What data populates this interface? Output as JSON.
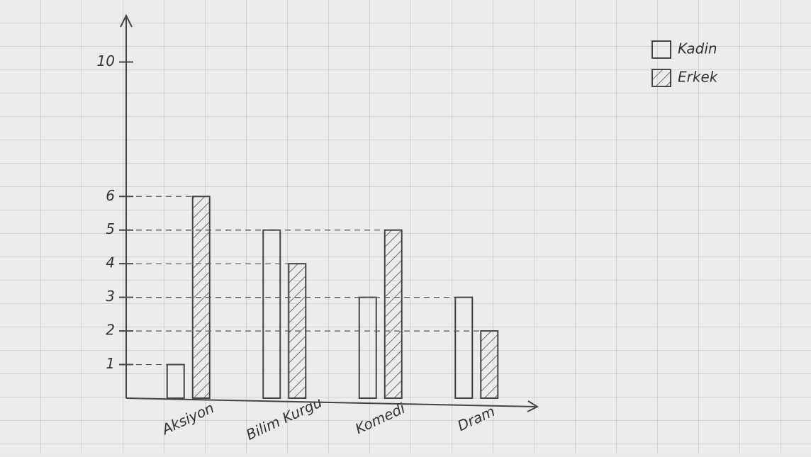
{
  "chart_data": {
    "type": "bar",
    "categories": [
      "Aksiyon",
      "Bilim Kurgu",
      "Komedi",
      "Dram"
    ],
    "series": [
      {
        "name": "Kadin",
        "color": "#444444",
        "pattern": "none",
        "values": [
          1,
          5,
          3,
          3
        ]
      },
      {
        "name": "Erkek",
        "color": "#444444",
        "pattern": "hatch",
        "values": [
          6,
          4,
          5,
          2
        ]
      }
    ],
    "ylim": [
      0,
      11
    ],
    "yticks": [
      1,
      2,
      3,
      4,
      5,
      6,
      10
    ],
    "grid": false,
    "guides": true,
    "legend": "top-right"
  }
}
